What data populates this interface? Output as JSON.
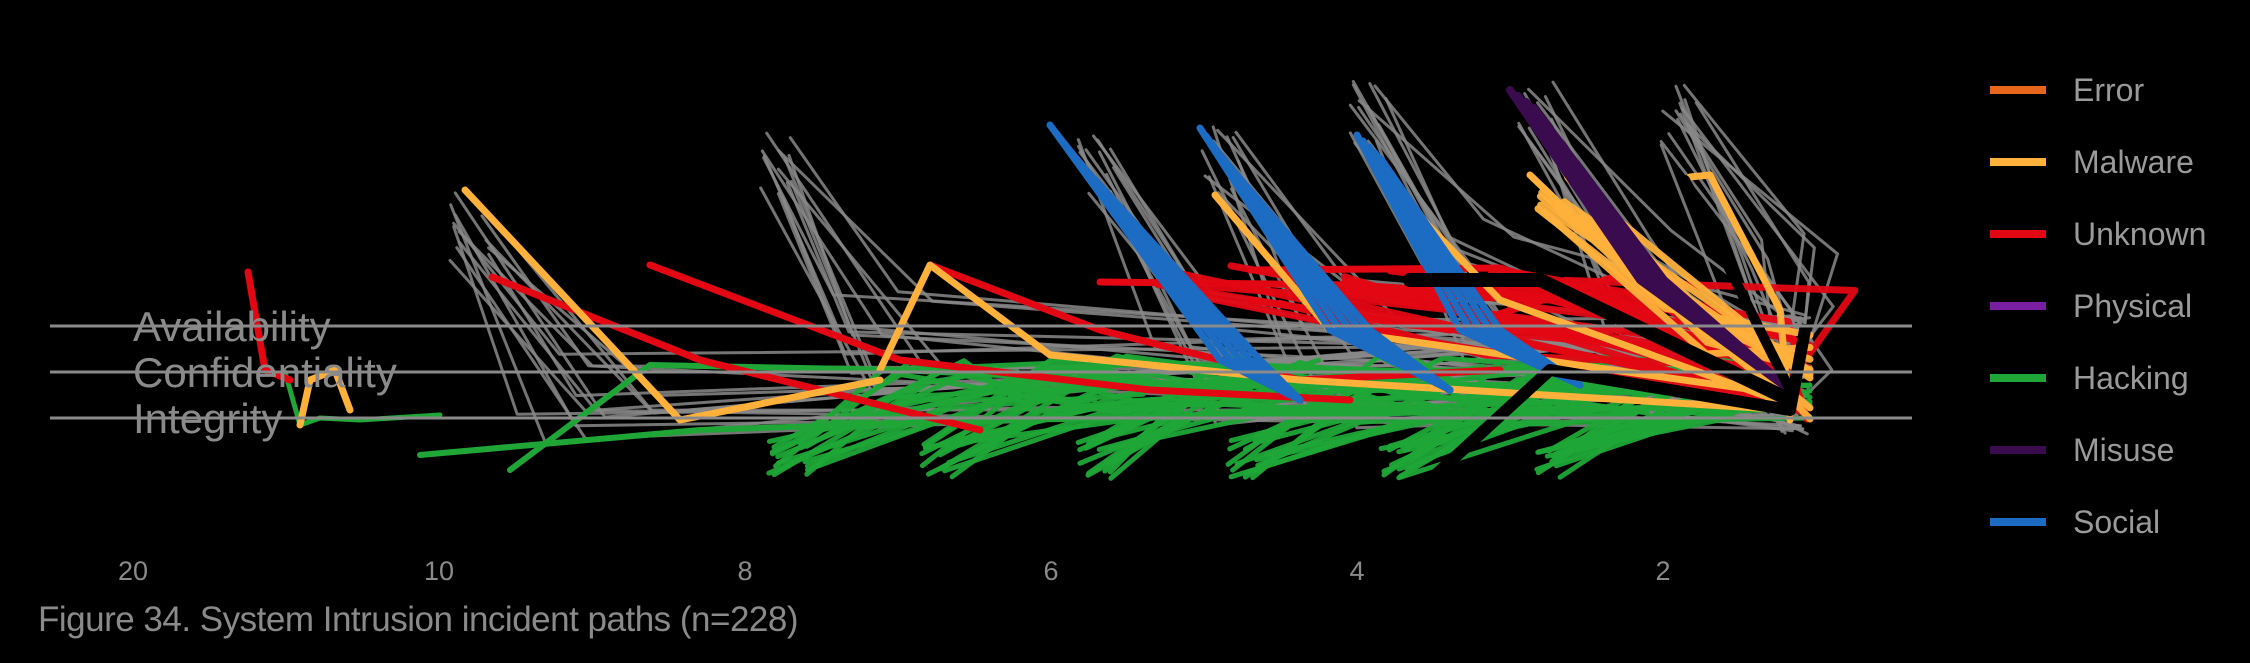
{
  "caption": "Figure 34. System Intrusion incident paths (n=228)",
  "chart_data": {
    "type": "line",
    "title": "",
    "xlabel": "",
    "ylabel": "",
    "x_ticks": [
      "20",
      "10",
      "8",
      "6",
      "4",
      "2"
    ],
    "categories": [
      "Availability",
      "Confidentiality",
      "Integrity"
    ],
    "legend_position": "right",
    "legend": [
      {
        "name": "Error",
        "color": "#e8661c"
      },
      {
        "name": "Malware",
        "color": "#ffb13b"
      },
      {
        "name": "Unknown",
        "color": "#e30613"
      },
      {
        "name": "Physical",
        "color": "#7a1fa2"
      },
      {
        "name": "Hacking",
        "color": "#1fa637"
      },
      {
        "name": "Misuse",
        "color": "#3a0b4f"
      },
      {
        "name": "Social",
        "color": "#1b6cc2"
      }
    ],
    "other_color": "#888888",
    "highlight_color": "#000000",
    "n_paths": 228
  }
}
